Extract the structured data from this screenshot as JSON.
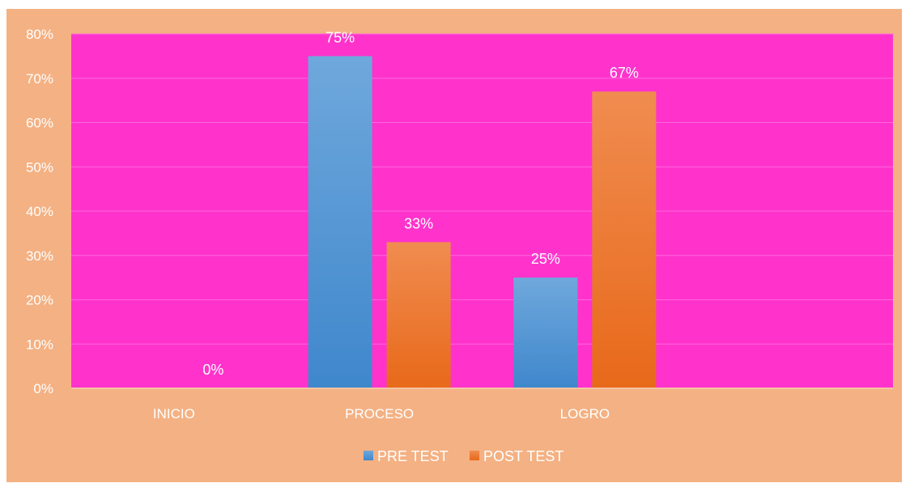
{
  "chart_data": {
    "type": "bar",
    "categories": [
      "INICIO",
      "PROCESO",
      "LOGRO"
    ],
    "series": [
      {
        "name": "PRE TEST",
        "values": [
          0,
          75,
          25
        ],
        "color": "#5b9bd5",
        "labels": [
          "",
          "75%",
          "25%"
        ]
      },
      {
        "name": "POST TEST",
        "values": [
          0,
          33,
          67
        ],
        "color": "#ed7d31",
        "labels": [
          "0%",
          "33%",
          "67%"
        ]
      }
    ],
    "ylim": [
      0,
      80
    ],
    "yticks": [
      "0%",
      "10%",
      "20%",
      "30%",
      "40%",
      "50%",
      "60%",
      "70%",
      "80%"
    ],
    "grid": true,
    "legend": "bottom",
    "plot_background": "#ff33cc",
    "chart_background": "#f4b183"
  }
}
